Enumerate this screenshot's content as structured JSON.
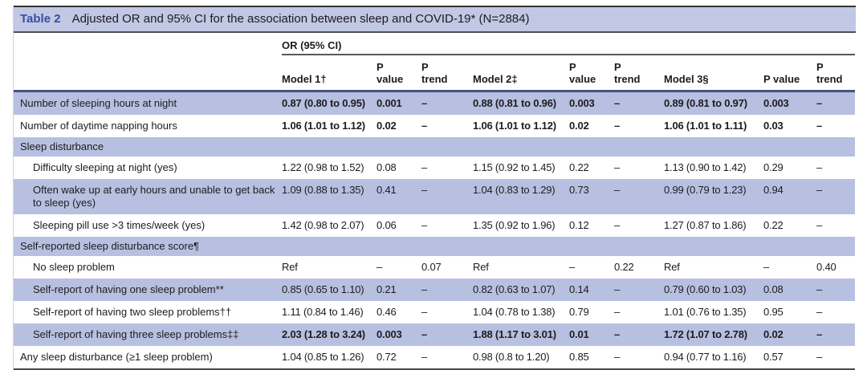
{
  "title": {
    "label": "Table 2",
    "text": "Adjusted OR and 95% CI for the association between sleep and COVID-19* (N=2884)"
  },
  "colors": {
    "stripe": "#b7c0e0",
    "title_bar": "#c2c7e4",
    "table_label_accent": "#3b4da1",
    "header_rule": "#4a5480"
  },
  "table": {
    "group_header": "OR (95% CI)",
    "columns": [
      "",
      "Model 1†",
      "P value",
      "P trend",
      "Model 2‡",
      "P value",
      "P trend",
      "Model 3§",
      "P value",
      "P trend"
    ],
    "rows": [
      {
        "type": "data",
        "indent": false,
        "bold": true,
        "label": "Number of sleeping hours at night",
        "cells": [
          "0.87 (0.80 to 0.95)",
          "0.001",
          "–",
          "0.88 (0.81 to 0.96)",
          "0.003",
          "–",
          "0.89 (0.81 to 0.97)",
          "0.003",
          "–"
        ]
      },
      {
        "type": "data",
        "indent": false,
        "bold": true,
        "label": "Number of daytime napping hours",
        "cells": [
          "1.06 (1.01 to 1.12)",
          "0.02",
          "–",
          "1.06 (1.01 to 1.12)",
          "0.02",
          "–",
          "1.06 (1.01 to 1.11)",
          "0.03",
          "–"
        ]
      },
      {
        "type": "section",
        "label": "Sleep disturbance"
      },
      {
        "type": "data",
        "indent": true,
        "bold": false,
        "label": "Difficulty sleeping at night (yes)",
        "cells": [
          "1.22 (0.98 to 1.52)",
          "0.08",
          "–",
          "1.15 (0.92 to 1.45)",
          "0.22",
          "–",
          "1.13 (0.90 to 1.42)",
          "0.29",
          "–"
        ]
      },
      {
        "type": "data",
        "indent": true,
        "bold": false,
        "label": "Often wake up at early hours and unable to get back to sleep (yes)",
        "cells": [
          "1.09 (0.88 to 1.35)",
          "0.41",
          "–",
          "1.04 (0.83 to 1.29)",
          "0.73",
          "–",
          "0.99 (0.79 to 1.23)",
          "0.94",
          "–"
        ]
      },
      {
        "type": "data",
        "indent": true,
        "bold": false,
        "label": "Sleeping pill use >3 times/week (yes)",
        "cells": [
          "1.42 (0.98 to 2.07)",
          "0.06",
          "–",
          "1.35 (0.92 to 1.96)",
          "0.12",
          "–",
          "1.27 (0.87 to 1.86)",
          "0.22",
          "–"
        ]
      },
      {
        "type": "section",
        "label": "Self-reported sleep disturbance score¶"
      },
      {
        "type": "data",
        "indent": true,
        "bold": false,
        "label": "No sleep problem",
        "cells": [
          "Ref",
          "–",
          "0.07",
          "Ref",
          "–",
          "0.22",
          "Ref",
          "–",
          "0.40"
        ]
      },
      {
        "type": "data",
        "indent": true,
        "bold": false,
        "label": "Self-report of having one sleep problem**",
        "cells": [
          "0.85 (0.65 to 1.10)",
          "0.21",
          "–",
          "0.82 (0.63 to 1.07)",
          "0.14",
          "–",
          "0.79 (0.60 to 1.03)",
          "0.08",
          "–"
        ]
      },
      {
        "type": "data",
        "indent": true,
        "bold": false,
        "label": "Self-report of having two sleep problems††",
        "cells": [
          "1.11 (0.84 to 1.46)",
          "0.46",
          "–",
          "1.04 (0.78 to 1.38)",
          "0.79",
          "–",
          "1.01 (0.76 to 1.35)",
          "0.95",
          "–"
        ]
      },
      {
        "type": "data",
        "indent": true,
        "bold": true,
        "label": "Self-report of having three sleep problems‡‡",
        "cells": [
          "2.03 (1.28 to 3.24)",
          "0.003",
          "–",
          "1.88 (1.17 to 3.01)",
          "0.01",
          "–",
          "1.72 (1.07 to 2.78)",
          "0.02",
          "–"
        ]
      },
      {
        "type": "data",
        "indent": false,
        "bold": false,
        "label": "Any sleep disturbance (≥1 sleep problem)",
        "cells": [
          "1.04 (0.85 to 1.26)",
          "0.72",
          "–",
          "0.98 (0.8 to 1.20)",
          "0.85",
          "–",
          "0.94 (0.77 to 1.16)",
          "0.57",
          "–"
        ]
      }
    ]
  }
}
